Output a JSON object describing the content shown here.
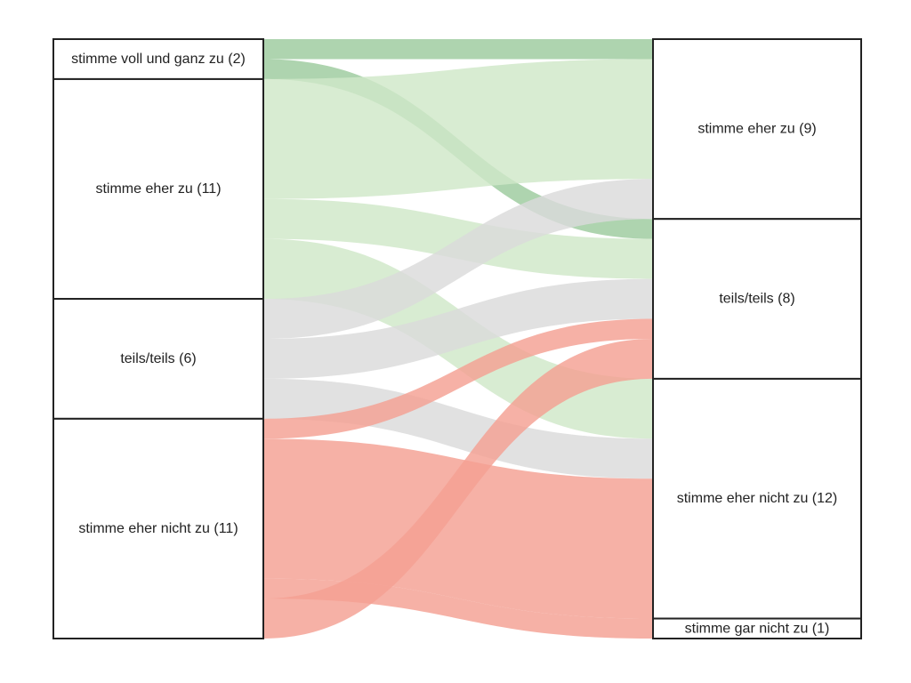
{
  "chart_data": {
    "type": "sankey",
    "colors": {
      "stimme voll und ganz zu": "#9ccb9d",
      "stimme eher zu": "#cfe8c8",
      "teils/teils": "#dadada",
      "stimme eher nicht zu": "#f4a092"
    },
    "left_nodes": [
      {
        "name": "stimme voll und ganz zu",
        "count": 2,
        "label": "stimme voll und ganz zu (2)"
      },
      {
        "name": "stimme eher zu",
        "count": 11,
        "label": "stimme eher zu (11)"
      },
      {
        "name": "teils/teils",
        "count": 6,
        "label": "teils/teils (6)"
      },
      {
        "name": "stimme eher nicht zu",
        "count": 11,
        "label": "stimme eher nicht zu (11)"
      }
    ],
    "right_nodes": [
      {
        "name": "stimme eher zu",
        "count": 9,
        "label": "stimme eher zu (9)"
      },
      {
        "name": "teils/teils",
        "count": 8,
        "label": "teils/teils (8)"
      },
      {
        "name": "stimme eher nicht zu",
        "count": 12,
        "label": "stimme eher nicht zu (12)"
      },
      {
        "name": "stimme gar nicht zu",
        "count": 1,
        "label": "stimme gar nicht zu (1)"
      }
    ],
    "flows": [
      {
        "from": "stimme voll und ganz zu",
        "to": "stimme eher zu",
        "value": 1
      },
      {
        "from": "stimme voll und ganz zu",
        "to": "teils/teils",
        "value": 1
      },
      {
        "from": "stimme eher zu",
        "to": "stimme eher zu",
        "value": 6
      },
      {
        "from": "stimme eher zu",
        "to": "teils/teils",
        "value": 2
      },
      {
        "from": "stimme eher zu",
        "to": "stimme eher nicht zu",
        "value": 3
      },
      {
        "from": "teils/teils",
        "to": "stimme eher zu",
        "value": 2
      },
      {
        "from": "teils/teils",
        "to": "teils/teils",
        "value": 2
      },
      {
        "from": "teils/teils",
        "to": "stimme eher nicht zu",
        "value": 2
      },
      {
        "from": "stimme eher nicht zu",
        "to": "teils/teils",
        "value": 1
      },
      {
        "from": "stimme eher nicht zu",
        "to": "stimme eher nicht zu",
        "value": 7
      },
      {
        "from": "stimme eher nicht zu",
        "to": "stimme gar nicht zu",
        "value": 1
      },
      {
        "from": "stimme eher nicht zu",
        "to": "teils/teils",
        "value": 2
      }
    ]
  }
}
